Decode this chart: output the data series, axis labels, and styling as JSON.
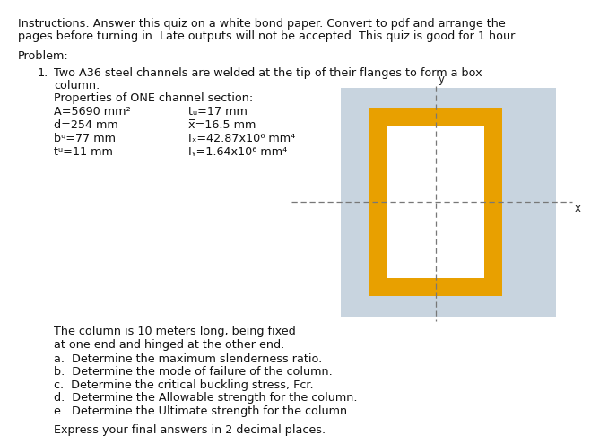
{
  "background_color": "#ffffff",
  "instructions_line1": "Instructions: Answer this quiz on a white bond paper. Convert to pdf and arrange the",
  "instructions_line2": "pages before turning in. Late outputs will not be accepted. This quiz is good for 1 hour.",
  "problem_label": "Problem:",
  "problem_number": "1.",
  "problem_line1": "Two A36 steel channels are welded at the tip of their flanges to form a box",
  "problem_line2": "column.",
  "properties_header": "Properties of ONE channel section:",
  "col1_props": [
    "A=5690 mm²",
    "d=254 mm",
    "bᵣ=77 mm",
    "tᵣ=11 mm"
  ],
  "col2_props": [
    "tᵤ=17 mm",
    "͝x̅=16.5 mm",
    "Iₓ=42.87x10⁶ mm⁴",
    "Iᵧ=1.64x10⁶ mm⁴"
  ],
  "col2_plain": [
    "tw=17 mm",
    "x̅=16.5 mm",
    "Ix=42.87x10⁶ mm⁴",
    "Iy=1.64x10⁶ mm⁴"
  ],
  "column_desc_line1": "The column is 10 meters long, being fixed",
  "column_desc_line2": "at one end and hinged at the other end.",
  "questions": [
    "a.  Determine the maximum slenderness ratio.",
    "b.  Determine the mode of failure of the column.",
    "c.  Determine the critical buckling stress, Fcr.",
    "d.  Determine the Allowable strength for the column.",
    "e.  Determine the Ultimate strength for the column."
  ],
  "final_note": "Express your final answers in 2 decimal places.",
  "box_color": "#E8A000",
  "box_bg": "#c8d4df",
  "dash_color": "#777777",
  "text_color": "#111111"
}
